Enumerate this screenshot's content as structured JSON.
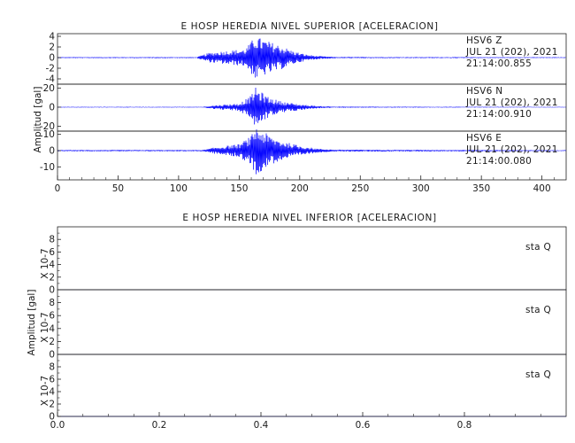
{
  "chart_data": [
    {
      "type": "line",
      "title": "E HOSP HEREDIA NIVEL SUPERIOR [ACELERACION]",
      "ylabel": "Amplitud [gal]",
      "xlim": [
        0,
        420
      ],
      "x_ticks": [
        "0",
        "50",
        "100",
        "150",
        "200",
        "250",
        "300",
        "350",
        "400"
      ],
      "color": "#0000ff",
      "channels": [
        {
          "station": "HSV6",
          "component": "Z",
          "date": "JUL 21 (202), 2021",
          "time": "21:14:00.855",
          "ylim": [
            -5,
            4.5
          ],
          "y_ticks": [
            "4",
            "2",
            "0",
            "-2",
            "-4"
          ],
          "envelope": [
            [
              0,
              0.1
            ],
            [
              115,
              0.1
            ],
            [
              125,
              0.9
            ],
            [
              140,
              1.3
            ],
            [
              155,
              1.6
            ],
            [
              160,
              3.0
            ],
            [
              163,
              4.2
            ],
            [
              168,
              3.6
            ],
            [
              175,
              3.0
            ],
            [
              185,
              2.2
            ],
            [
              195,
              1.2
            ],
            [
              205,
              0.6
            ],
            [
              215,
              0.3
            ],
            [
              230,
              0.12
            ],
            [
              420,
              0.08
            ]
          ]
        },
        {
          "station": "HSV6",
          "component": "N",
          "date": "JUL 21 (202), 2021",
          "time": "21:14:00.910",
          "ylim": [
            -25,
            24
          ],
          "y_ticks": [
            "20",
            "0",
            "-20"
          ],
          "envelope": [
            [
              0,
              0.4
            ],
            [
              120,
              0.4
            ],
            [
              130,
              2.0
            ],
            [
              150,
              4.0
            ],
            [
              160,
              12
            ],
            [
              163,
              21
            ],
            [
              168,
              16
            ],
            [
              175,
              10
            ],
            [
              185,
              6
            ],
            [
              200,
              3
            ],
            [
              215,
              1.2
            ],
            [
              230,
              0.6
            ],
            [
              420,
              0.3
            ]
          ]
        },
        {
          "station": "HSV6",
          "component": "E",
          "date": "JUL 21 (202), 2021",
          "time": "21:14:00.080",
          "ylim": [
            -18,
            12
          ],
          "y_ticks": [
            "10",
            "0",
            "-10"
          ],
          "envelope": [
            [
              0,
              0.4
            ],
            [
              120,
              0.4
            ],
            [
              130,
              2.0
            ],
            [
              150,
              4.0
            ],
            [
              160,
              9
            ],
            [
              163,
              15
            ],
            [
              170,
              12
            ],
            [
              175,
              9
            ],
            [
              185,
              6
            ],
            [
              200,
              3
            ],
            [
              215,
              1.2
            ],
            [
              230,
              0.6
            ],
            [
              420,
              0.3
            ]
          ]
        }
      ]
    },
    {
      "type": "line",
      "title": "E HOSP HEREDIA NIVEL INFERIOR [ACELERACION]",
      "ylabel": "Amplitud [gal]",
      "xlim": [
        0,
        1
      ],
      "x_ticks": [
        "0.0",
        "0.2",
        "0.4",
        "0.6",
        "0.8"
      ],
      "y_ticks": [
        "8",
        "6",
        "4",
        "2",
        "0"
      ],
      "y_scale_label": "X 10-7",
      "ylim": [
        0,
        10
      ],
      "color": "#0000ff",
      "channels": [
        {
          "station": "sta",
          "component": "Q",
          "values": [
            0,
            0
          ]
        },
        {
          "station": "sta",
          "component": "Q",
          "values": [
            0,
            0
          ]
        },
        {
          "station": "sta",
          "component": "Q",
          "values": [
            0,
            0
          ]
        }
      ]
    }
  ]
}
